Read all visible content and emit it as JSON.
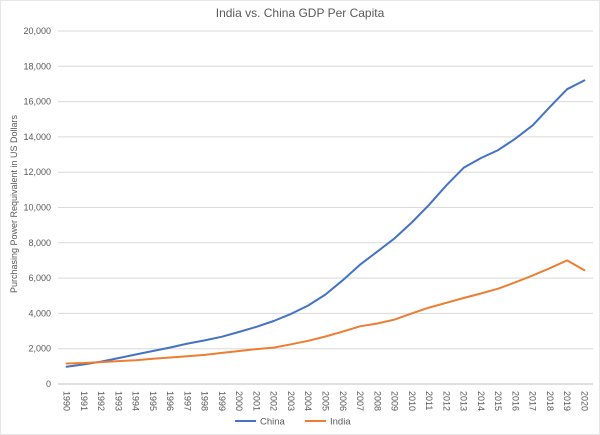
{
  "chart_data": {
    "type": "line",
    "title": "India vs. China GDP Per Capita",
    "ylabel": "Purchasing Power Requivalent in US Dollars",
    "xlabel": "",
    "x": [
      "1990",
      "1991",
      "1992",
      "1993",
      "1994",
      "1995",
      "1996",
      "1997",
      "1998",
      "1999",
      "2000",
      "2001",
      "2002",
      "2003",
      "2004",
      "2005",
      "2006",
      "2007",
      "2008",
      "2009",
      "2010",
      "2011",
      "2012",
      "2013",
      "2014",
      "2015",
      "2016",
      "2017",
      "2018",
      "2019",
      "2020"
    ],
    "series": [
      {
        "name": "China",
        "color": "#4472C4",
        "values": [
          980,
          1110,
          1270,
          1470,
          1670,
          1870,
          2070,
          2290,
          2470,
          2680,
          2950,
          3240,
          3570,
          3970,
          4450,
          5070,
          5880,
          6760,
          7500,
          8250,
          9150,
          10150,
          11250,
          12250,
          12800,
          13250,
          13900,
          14650,
          15700,
          16700,
          17200
        ]
      },
      {
        "name": "India",
        "color": "#ED7D31",
        "values": [
          1160,
          1190,
          1240,
          1300,
          1350,
          1425,
          1500,
          1570,
          1650,
          1760,
          1870,
          1980,
          2060,
          2250,
          2450,
          2690,
          2970,
          3270,
          3430,
          3650,
          4000,
          4330,
          4600,
          4870,
          5130,
          5400,
          5760,
          6150,
          6560,
          7000,
          6450
        ]
      }
    ],
    "ylim": [
      0,
      20000
    ],
    "ytick_step": 2000,
    "grid": "horizontal",
    "legend_position": "bottom",
    "x_label_rotation": 90,
    "colors": {
      "text": "#595959",
      "grid": "#D9D9D9",
      "axis": "#BFBFBF",
      "background": "#FFFFFF"
    }
  }
}
